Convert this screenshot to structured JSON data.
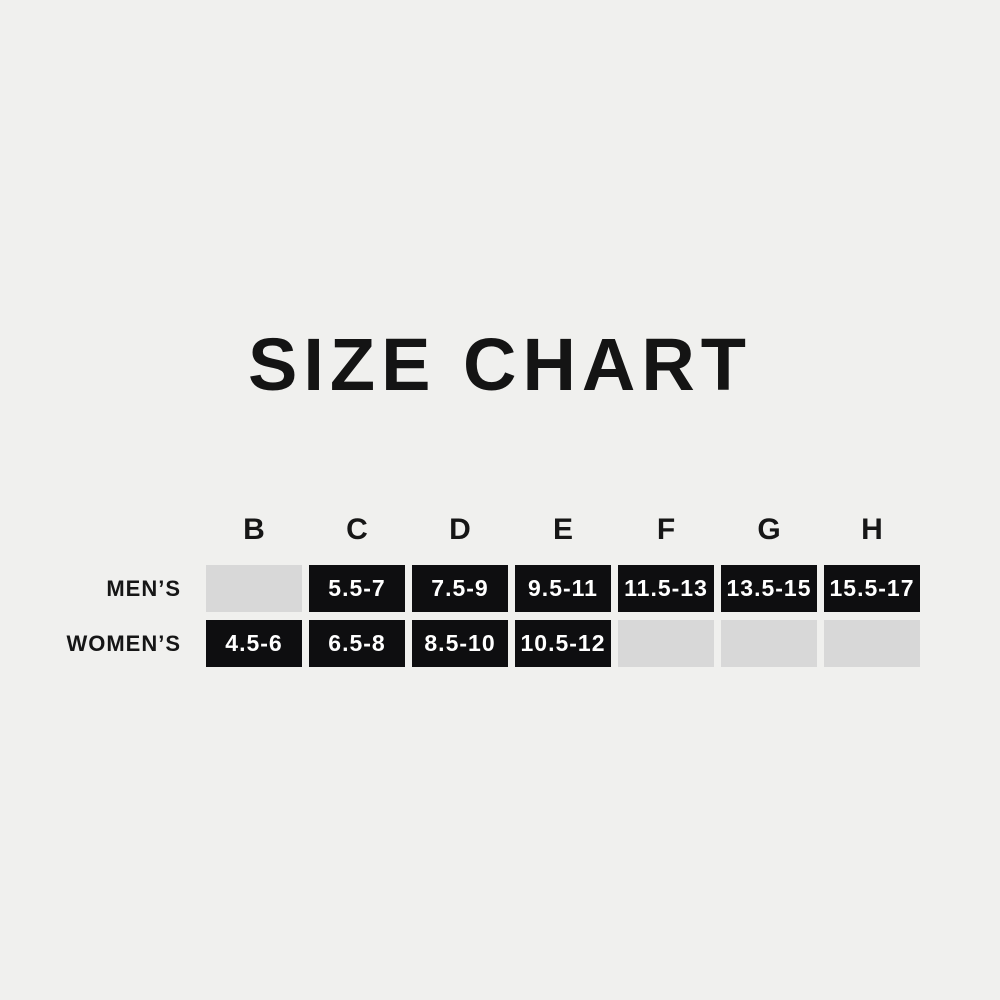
{
  "title": "SIZE CHART",
  "colors": {
    "background": "#f0f0ee",
    "cell_filled": "#0e0e10",
    "cell_empty": "#d8d8d8",
    "cell_text": "#ffffff",
    "text": "#161616"
  },
  "chart_data": {
    "type": "table",
    "title": "SIZE CHART",
    "columns": [
      "B",
      "C",
      "D",
      "E",
      "F",
      "G",
      "H"
    ],
    "rows": [
      {
        "label": "MEN’S",
        "values": [
          "",
          "5.5-7",
          "7.5-9",
          "9.5-11",
          "11.5-13",
          "13.5-15",
          "15.5-17"
        ]
      },
      {
        "label": "WOMEN’S",
        "values": [
          "4.5-6",
          "6.5-8",
          "8.5-10",
          "10.5-12",
          "",
          "",
          ""
        ]
      }
    ]
  }
}
